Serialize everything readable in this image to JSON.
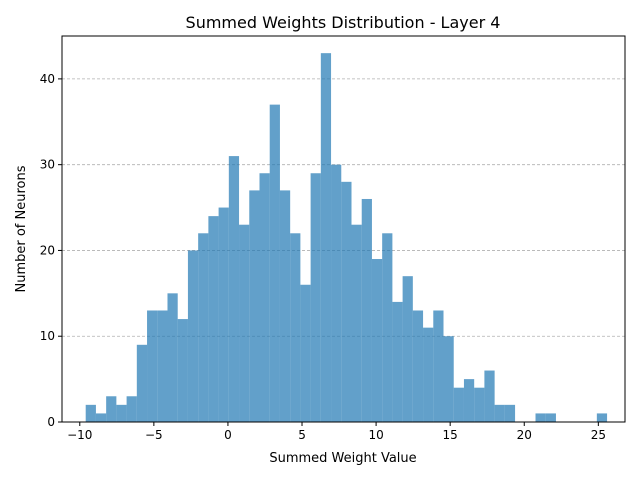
{
  "chart_data": {
    "type": "bar",
    "title": "Summed Weights Distribution - Layer 4",
    "xlabel": "Summed Weight Value",
    "ylabel": "Number of Neurons",
    "xlim": [
      -11.2,
      26.8
    ],
    "ylim": [
      0,
      45
    ],
    "x_ticks": [
      -10,
      -5,
      0,
      5,
      10,
      15,
      20,
      25
    ],
    "y_ticks": [
      0,
      10,
      20,
      30,
      40
    ],
    "grid": "y-dashed",
    "bar_color": "#1f77b4",
    "bar_alpha": 0.7,
    "bin_start": -9.6,
    "bin_width": 0.69,
    "values": [
      2,
      1,
      3,
      2,
      3,
      9,
      13,
      13,
      15,
      12,
      20,
      22,
      24,
      25,
      31,
      23,
      27,
      29,
      37,
      27,
      22,
      16,
      29,
      43,
      30,
      28,
      23,
      26,
      19,
      22,
      14,
      17,
      13,
      11,
      13,
      10,
      4,
      5,
      4,
      6,
      2,
      2,
      0,
      0,
      1,
      1,
      0,
      0,
      0,
      0,
      1
    ]
  }
}
